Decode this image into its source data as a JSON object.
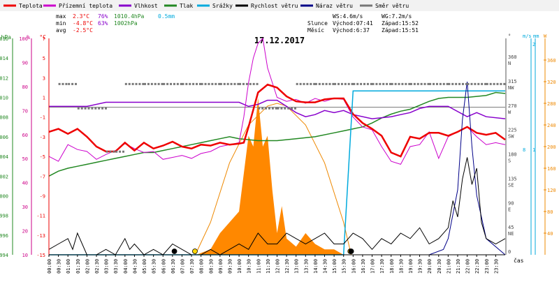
{
  "chart_data": {
    "type": "line",
    "title": "17.12.2017",
    "xlabel": "čas",
    "legend": [
      {
        "name": "Teplota",
        "color": "#ee0000"
      },
      {
        "name": "Přízemní teplota",
        "color": "#cc00cc"
      },
      {
        "name": "Vlhkost",
        "color": "#8800cc"
      },
      {
        "name": "Tlak",
        "color": "#228822"
      },
      {
        "name": "Srážky",
        "color": "#00aadd"
      },
      {
        "name": "Rychlost větru",
        "color": "#000000"
      },
      {
        "name": "Náraz větru",
        "color": "#000088"
      },
      {
        "name": "Směr větru",
        "color": "#777777"
      }
    ],
    "stats": {
      "max_label": "max",
      "max_temp": "2.3°C",
      "max_hum": "76%",
      "max_press": "1010.4hPa",
      "max_rain": "0.5mm",
      "min_label": "min",
      "min_temp": "-4.8°C",
      "min_hum": "63%",
      "min_press": "1002hPa",
      "avg_label": "avg",
      "avg_temp": "-2.5°C"
    },
    "astro": {
      "ws": "WS:4.6m/s",
      "wg": "WG:7.2m/s",
      "sun_label": "Slunce",
      "sun_rise": "Východ:07:41",
      "sun_set": "Západ:15:52",
      "moon_label": "Měsíc",
      "moon_rise": "Východ:6:37",
      "moon_set": "Západ:15:51"
    },
    "axes": {
      "hpa": {
        "unit": "hPa",
        "min": 994,
        "max": 1016,
        "ticks": [
          "1016",
          "1014",
          "1012",
          "1010",
          "1008",
          "1006",
          "1004",
          "1002",
          "1000",
          "998",
          "996",
          "994"
        ]
      },
      "pct": {
        "unit": "%",
        "ticks": [
          "100",
          "90",
          "80",
          "70",
          "60",
          "50",
          "40",
          "30",
          "20",
          "10"
        ]
      },
      "temp": {
        "unit": "°C",
        "min": -15,
        "max": 7,
        "ticks": [
          "7",
          "5",
          "3",
          "1",
          "-1",
          "-3",
          "-5",
          "-7",
          "-9",
          "-11",
          "-13",
          "-15"
        ]
      },
      "dir": {
        "unit": "°",
        "ticks": [
          {
            "deg": "360",
            "name": "N"
          },
          {
            "deg": "315",
            "name": "NW"
          },
          {
            "deg": "270",
            "name": "W"
          },
          {
            "deg": "225",
            "name": "SW"
          },
          {
            "deg": "180",
            "name": "S"
          },
          {
            "deg": "135",
            "name": "SE"
          },
          {
            "deg": "90",
            "name": "E"
          },
          {
            "deg": "45",
            "name": "NE"
          },
          {
            "deg": "0",
            "name": ""
          }
        ]
      },
      "ms": {
        "unit": "m/s",
        "ticks": [
          "2",
          "1"
        ]
      },
      "mm": {
        "unit": "mm",
        "ticks": [
          "8",
          "1"
        ]
      },
      "w": {
        "unit": "W",
        "ticks": [
          "360",
          "320",
          "280",
          "240",
          "200",
          "160",
          "120",
          "80",
          "40"
        ]
      }
    },
    "x_ticks": [
      "00:00",
      "00:30",
      "01:00",
      "01:30",
      "02:00",
      "02:30",
      "03:00",
      "03:30",
      "04:00",
      "04:30",
      "05:00",
      "05:30",
      "06:00",
      "06:30",
      "07:00",
      "07:30",
      "08:00",
      "08:30",
      "09:00",
      "09:30",
      "10:00",
      "10:30",
      "11:00",
      "11:30",
      "12:00",
      "12:30",
      "13:00",
      "13:30",
      "14:00",
      "14:30",
      "15:00",
      "15:30",
      "16:00",
      "16:30",
      "17:00",
      "17:30",
      "18:00",
      "18:30",
      "19:00",
      "19:30",
      "20:00",
      "20:30",
      "21:00",
      "21:30",
      "22:00",
      "22:30",
      "23:00",
      "23:30"
    ],
    "series": [
      {
        "name": "Teplota",
        "unit": "°C",
        "color": "#ee0000",
        "x": [
          0,
          0.5,
          1,
          1.5,
          2,
          2.5,
          3,
          3.5,
          4,
          4.5,
          5,
          5.5,
          6,
          6.5,
          7,
          7.5,
          8,
          8.5,
          9,
          9.5,
          10,
          10.25,
          10.5,
          11,
          11.5,
          12,
          12.5,
          13,
          13.5,
          14,
          14.5,
          15,
          15.5,
          16,
          16.5,
          17,
          17.5,
          18,
          18.5,
          19,
          19.5,
          20,
          20.5,
          21,
          21.5,
          22,
          22.5,
          23,
          23.5,
          24
        ],
        "values": [
          -2.5,
          -2.2,
          -2.7,
          -2.2,
          -3,
          -4,
          -4.5,
          -4.5,
          -3.6,
          -4.4,
          -3.6,
          -4.2,
          -3.9,
          -3.5,
          -4,
          -4.2,
          -3.8,
          -3.9,
          -3.6,
          -3.8,
          -3.7,
          -3.6,
          -2,
          1.5,
          2.3,
          2,
          1.1,
          0.6,
          0.5,
          0.5,
          0.8,
          0.9,
          0.9,
          -0.7,
          -1.6,
          -2.2,
          -2.9,
          -4.6,
          -5,
          -3,
          -3.2,
          -2.6,
          -2.6,
          -2.9,
          -2.5,
          -2,
          -2.6,
          -2.8,
          -2.6,
          -3.3
        ]
      },
      {
        "name": "Přízemní teplota",
        "unit": "°C",
        "color": "#cc00cc",
        "x": [
          0,
          0.5,
          1,
          1.5,
          2,
          2.5,
          3,
          3.5,
          4,
          4.5,
          5,
          5.5,
          6,
          6.5,
          7,
          7.5,
          8,
          8.5,
          9,
          9.5,
          10,
          10.25,
          10.5,
          10.75,
          11,
          11.25,
          11.5,
          12,
          12.5,
          13,
          13.5,
          14,
          14.5,
          15,
          15.5,
          16,
          16.5,
          17,
          17.5,
          18,
          18.5,
          19,
          19.5,
          20,
          20.5,
          21,
          21.5,
          22,
          22.5,
          23,
          23.5,
          24
        ],
        "values": [
          -5,
          -5.5,
          -3.8,
          -4.3,
          -4.5,
          -5.3,
          -4.8,
          -4.4,
          -3.7,
          -4.2,
          -4.6,
          -4.5,
          -5.3,
          -5.1,
          -4.9,
          -5.2,
          -4.7,
          -4.5,
          -4,
          -3.8,
          -3.6,
          -1,
          2.5,
          5,
          6.5,
          7,
          4,
          1,
          0.6,
          0.8,
          0.4,
          0.9,
          0.6,
          0.9,
          0.8,
          -1,
          -2,
          -2.3,
          -4,
          -5.5,
          -5.8,
          -4,
          -3.8,
          -2.5,
          -5.2,
          -3,
          -2.5,
          -2,
          -3,
          -3.8,
          -3.6,
          -3.8
        ]
      },
      {
        "name": "Vlhkost",
        "unit": "%",
        "color": "#8800cc",
        "x": [
          0,
          1,
          2,
          3,
          4,
          5,
          6,
          7,
          8,
          9,
          10,
          10.5,
          11,
          11.5,
          12,
          12.5,
          13,
          13.5,
          14,
          14.5,
          15,
          15.5,
          16,
          17,
          18,
          18.5,
          19,
          19.5,
          20,
          21,
          22,
          22.5,
          23,
          24
        ],
        "values": [
          72,
          72,
          72,
          74,
          74,
          74,
          74,
          74,
          74,
          74,
          74,
          72,
          73,
          75,
          75,
          72,
          69,
          67,
          68,
          70,
          69,
          70,
          68,
          66,
          67,
          68,
          69,
          71,
          72,
          72,
          67,
          69,
          67,
          66
        ]
      },
      {
        "name": "Tlak",
        "unit": "hPa",
        "color": "#228822",
        "x": [
          0,
          0.5,
          1,
          1.5,
          2,
          2.5,
          3,
          3.5,
          4,
          4.5,
          5,
          5.5,
          6,
          6.5,
          7,
          7.5,
          8,
          8.5,
          9,
          9.5,
          10,
          11,
          12,
          13,
          14,
          15,
          15.5,
          16,
          16.5,
          17,
          17.5,
          18,
          18.5,
          19,
          19.5,
          20,
          20.5,
          21,
          21.5,
          22,
          22.5,
          23,
          23.5,
          24
        ],
        "values": [
          1002,
          1002.5,
          1002.8,
          1003,
          1003.2,
          1003.4,
          1003.6,
          1003.8,
          1004,
          1004.2,
          1004.4,
          1004.4,
          1004.6,
          1004.8,
          1005,
          1005.2,
          1005.4,
          1005.6,
          1005.8,
          1006,
          1005.8,
          1005.6,
          1005.6,
          1005.8,
          1006,
          1006.4,
          1006.6,
          1006.8,
          1007,
          1007.4,
          1007.9,
          1008.3,
          1008.6,
          1008.8,
          1009.2,
          1009.6,
          1009.9,
          1010,
          1010,
          1010,
          1010.1,
          1010.2,
          1010.5,
          1010.4
        ]
      },
      {
        "name": "Srážky",
        "unit": "mm",
        "color": "#00aadd",
        "x": [
          0,
          15.5,
          16,
          24
        ],
        "values": [
          0,
          0,
          0.5,
          0.5
        ]
      },
      {
        "name": "Rychlost větru",
        "unit": "m/s",
        "color": "#000000",
        "x": [
          0,
          0.5,
          1,
          1.25,
          1.5,
          2,
          2.5,
          3,
          3.5,
          4,
          4.25,
          4.5,
          5,
          5.5,
          6,
          6.5,
          7,
          7.5,
          8,
          8.5,
          9,
          9.5,
          10,
          10.5,
          11,
          11.5,
          12,
          12.5,
          13,
          13.5,
          14,
          14.5,
          15,
          15.5,
          16,
          16.5,
          17,
          17.5,
          18,
          18.5,
          19,
          19.5,
          20,
          20.5,
          21,
          21.25,
          21.5,
          21.75,
          22,
          22.25,
          22.5,
          22.75,
          23,
          23.5,
          24
        ],
        "values": [
          0.1,
          0.2,
          0.3,
          0.1,
          0.4,
          0,
          0,
          0.1,
          0,
          0.3,
          0.1,
          0.2,
          0,
          0.1,
          0,
          0.2,
          0.1,
          0,
          0,
          0.1,
          0,
          0.1,
          0.2,
          0.1,
          0.4,
          0.2,
          0.2,
          0.4,
          0.3,
          0.2,
          0.3,
          0.4,
          0.2,
          0.2,
          0.4,
          0.3,
          0.1,
          0.3,
          0.2,
          0.4,
          0.3,
          0.5,
          0.2,
          0.3,
          0.5,
          1,
          0.7,
          1.4,
          1.8,
          1.3,
          1.6,
          0.6,
          0.3,
          0.2,
          0.3
        ]
      },
      {
        "name": "Náraz větru",
        "unit": "m/s",
        "color": "#000088",
        "x": [
          0,
          20,
          20.75,
          21,
          21.5,
          21.75,
          22,
          22.25,
          22.5,
          23,
          24
        ],
        "values": [
          0,
          0,
          0.1,
          0.3,
          1.2,
          2.5,
          3.2,
          2,
          1.1,
          0.3,
          0
        ]
      },
      {
        "name": "Směr větru",
        "unit": "°",
        "color": "#777777",
        "x": [
          0.5,
          1,
          1.5,
          3,
          3.5,
          4,
          5,
          6,
          7,
          8,
          9,
          10,
          11,
          12,
          13,
          14,
          15,
          16,
          17,
          18,
          19,
          20,
          21,
          22,
          23,
          24
        ],
        "values": [
          315,
          315,
          270,
          190,
          190,
          315,
          315,
          315,
          315,
          315,
          315,
          315,
          270,
          270,
          315,
          315,
          315,
          315,
          315,
          315,
          315,
          315,
          315,
          315,
          315,
          315
        ]
      },
      {
        "name": "Sluneční záření",
        "unit": "W",
        "color": "#ff8800",
        "x": [
          7.75,
          8.5,
          9,
          9.5,
          10,
          10.25,
          10.5,
          10.75,
          11,
          11.25,
          11.5,
          11.75,
          12,
          12.25,
          12.5,
          13,
          13.5,
          14,
          14.5,
          15,
          15.5
        ],
        "values": [
          0,
          10,
          40,
          60,
          80,
          150,
          220,
          200,
          290,
          200,
          220,
          120,
          40,
          90,
          30,
          15,
          40,
          20,
          10,
          10,
          0
        ]
      },
      {
        "name": "Teoretické záření",
        "unit": "W",
        "color": "#ee8800",
        "x": [
          7.7,
          8.5,
          9.5,
          10.5,
          11.5,
          12,
          12.5,
          13.5,
          14.5,
          15.5,
          15.9
        ],
        "values": [
          0,
          60,
          170,
          240,
          275,
          280,
          275,
          240,
          170,
          60,
          0
        ]
      }
    ]
  }
}
